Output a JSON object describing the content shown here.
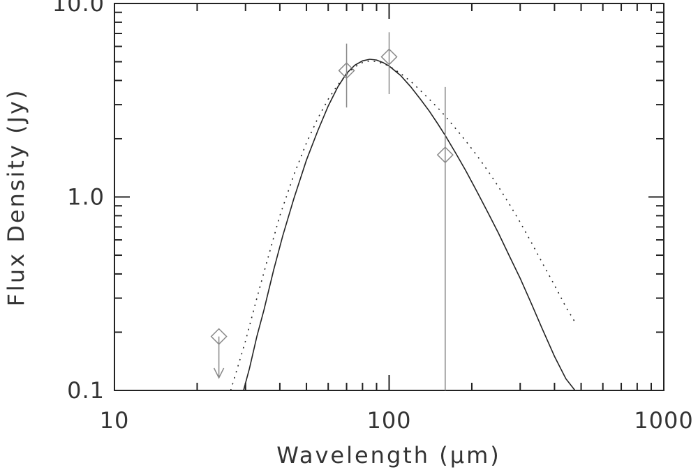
{
  "chart_data": {
    "type": "scatter",
    "title": "",
    "xlabel": "Wavelength (μm)",
    "ylabel": "Flux Density (Jy)",
    "xscale": "log",
    "yscale": "log",
    "xlim": [
      10,
      1000
    ],
    "ylim": [
      0.1,
      10.0
    ],
    "x_tick_labels": [
      {
        "value": 10,
        "label": "10"
      },
      {
        "value": 100,
        "label": "100"
      },
      {
        "value": 1000,
        "label": "1000"
      }
    ],
    "y_tick_labels": [
      {
        "value": 0.1,
        "label": "0.1"
      },
      {
        "value": 1.0,
        "label": "1.0"
      },
      {
        "value": 10.0,
        "label": "10.0"
      }
    ],
    "grid": false,
    "legend": false,
    "series": [
      {
        "marker": "diamond",
        "color": "#888888",
        "points": [
          {
            "x": 24,
            "y": 0.19,
            "upper_limit": true
          },
          {
            "x": 70,
            "y": 4.5,
            "yerr_low": 2.9,
            "yerr_high": 6.2
          },
          {
            "x": 100,
            "y": 5.3,
            "yerr_low": 3.4,
            "yerr_high": 7.1
          },
          {
            "x": 160,
            "y": 1.65,
            "yerr_low": 0.1,
            "yerr_high": 3.7
          }
        ]
      },
      {
        "style": "solid",
        "color": "#222222",
        "x": [
          29.5,
          31,
          33,
          35,
          38,
          41,
          45,
          50,
          55,
          60,
          65,
          70,
          75,
          80,
          85,
          90,
          95,
          100,
          110,
          120,
          130,
          140,
          150,
          160,
          175,
          190,
          210,
          230,
          250,
          275,
          300,
          330,
          360,
          400,
          440,
          475
        ],
        "y": [
          0.1,
          0.13,
          0.19,
          0.26,
          0.42,
          0.63,
          0.98,
          1.55,
          2.2,
          2.95,
          3.7,
          4.35,
          4.8,
          5.05,
          5.15,
          5.1,
          4.95,
          4.75,
          4.25,
          3.7,
          3.2,
          2.78,
          2.4,
          2.08,
          1.68,
          1.37,
          1.05,
          0.82,
          0.65,
          0.49,
          0.38,
          0.28,
          0.21,
          0.15,
          0.115,
          0.1
        ]
      },
      {
        "style": "dotted",
        "color": "#222222",
        "x": [
          26.5,
          28,
          30,
          33,
          36,
          40,
          45,
          50,
          55,
          60,
          65,
          70,
          75,
          80,
          85,
          90,
          95,
          100,
          110,
          120,
          130,
          140,
          150,
          160,
          175,
          190,
          210,
          230,
          250,
          275,
          300,
          330,
          360,
          400,
          440,
          480
        ],
        "y": [
          0.1,
          0.13,
          0.18,
          0.3,
          0.47,
          0.8,
          1.3,
          1.9,
          2.55,
          3.2,
          3.8,
          4.3,
          4.7,
          4.95,
          5.05,
          5.0,
          4.9,
          4.75,
          4.35,
          3.95,
          3.55,
          3.2,
          2.9,
          2.62,
          2.25,
          1.95,
          1.62,
          1.35,
          1.13,
          0.91,
          0.74,
          0.58,
          0.46,
          0.35,
          0.27,
          0.22
        ]
      }
    ]
  }
}
